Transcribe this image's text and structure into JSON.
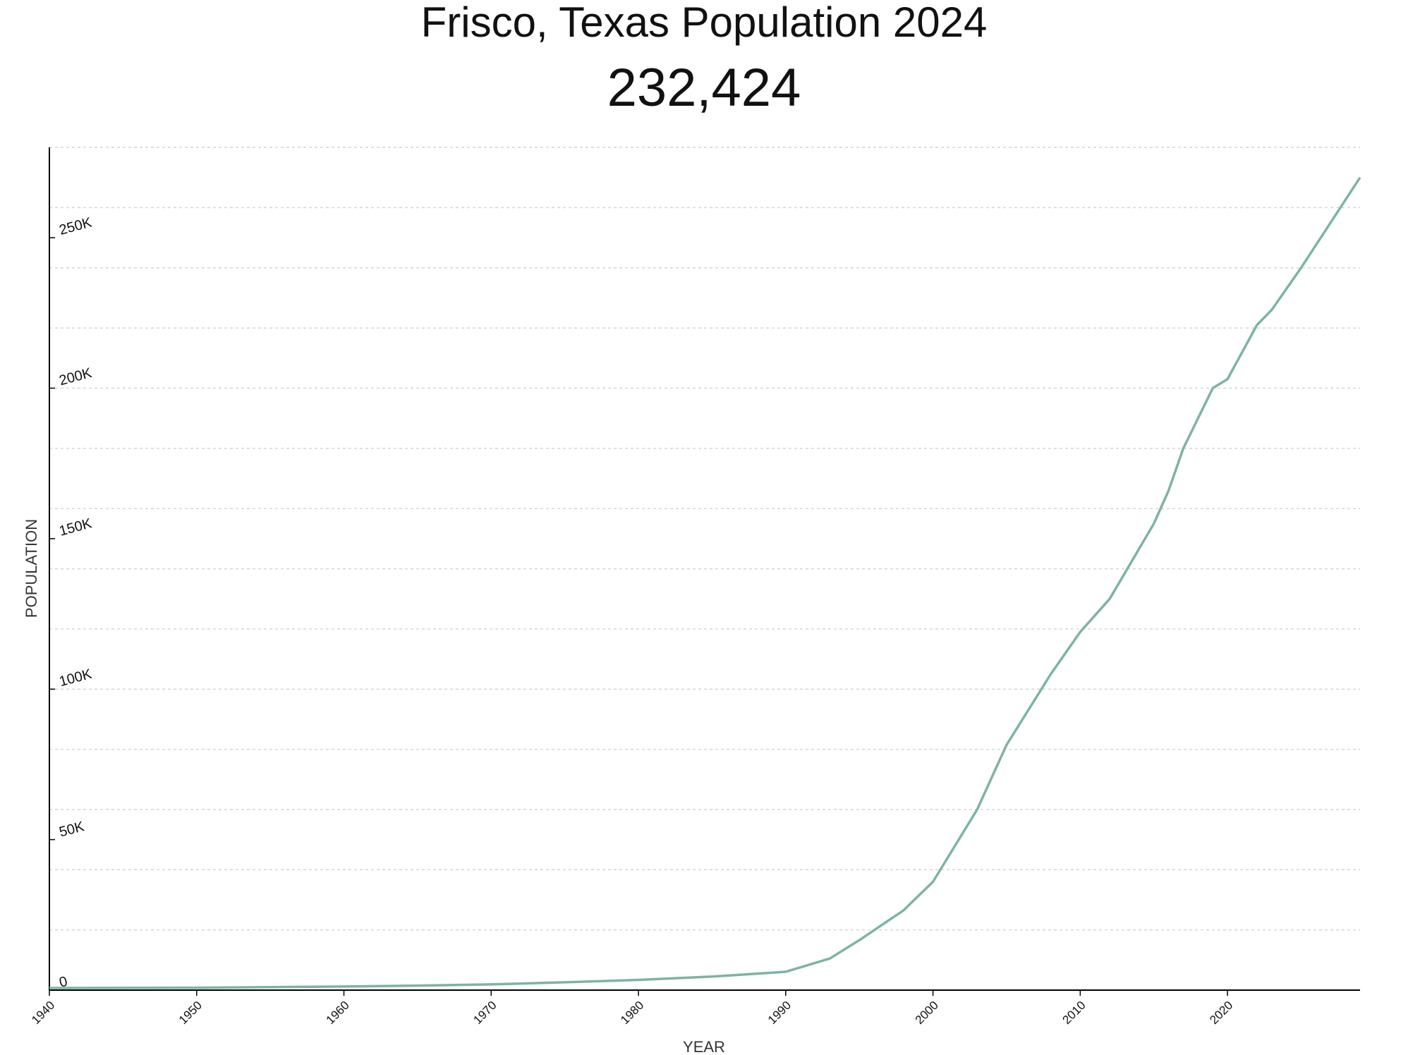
{
  "chart_data": {
    "type": "line",
    "title": "Frisco, Texas Population 2024",
    "subtitle": "232,424",
    "x_label": "YEAR",
    "y_label": "POPULATION",
    "x": [
      1940,
      1950,
      1960,
      1965,
      1970,
      1975,
      1980,
      1985,
      1990,
      1993,
      1995,
      1998,
      2000,
      2003,
      2005,
      2008,
      2010,
      2012,
      2015,
      2016,
      2017,
      2018,
      2019,
      2020,
      2022,
      2023,
      2025,
      2027,
      2029
    ],
    "series": [
      {
        "name": "Population",
        "color": "#7fb3a1",
        "values": [
          700,
          800,
          1200,
          1500,
          1900,
          2600,
          3400,
          4500,
          6100,
          10500,
          16600,
          26500,
          36000,
          60000,
          81500,
          105000,
          119000,
          130000,
          155000,
          166000,
          180000,
          190000,
          200000,
          203000,
          221000,
          226000,
          240000,
          255000,
          270000
        ]
      }
    ],
    "xlim": [
      1940,
      2029
    ],
    "ylim": [
      0,
      280000
    ],
    "xticks": [
      1940,
      1950,
      1960,
      1970,
      1980,
      1990,
      2000,
      2010,
      2020
    ],
    "yticks": [
      0,
      {
        "value": 50000,
        "label": "50K"
      },
      {
        "value": 100000,
        "label": "100K"
      },
      {
        "value": 150000,
        "label": "150K"
      },
      {
        "value": 200000,
        "label": "200K"
      },
      {
        "value": 250000,
        "label": "250K"
      }
    ],
    "ygrid": [
      0,
      20000,
      40000,
      60000,
      80000,
      100000,
      120000,
      140000,
      160000,
      180000,
      200000,
      220000,
      240000,
      260000,
      280000
    ]
  }
}
